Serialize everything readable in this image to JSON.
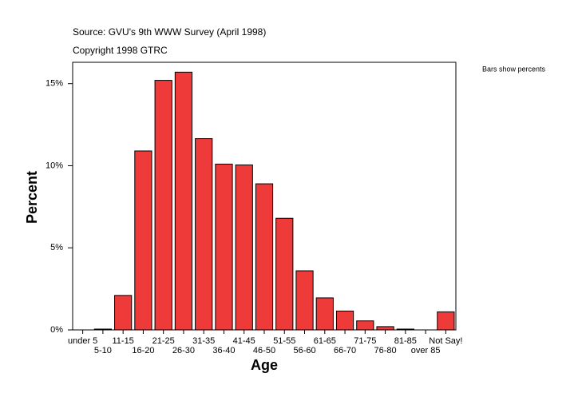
{
  "chart_data": {
    "type": "bar",
    "title": "Source: GVU's 9th WWW Survey (April 1998)",
    "subtitle": "Copyright 1998 GTRC",
    "annotation": "Bars show percents",
    "x_label": "Age",
    "y_label": "Percent",
    "categories": [
      "under 5",
      "5-10",
      "11-15",
      "16-20",
      "21-25",
      "26-30",
      "31-35",
      "36-40",
      "41-45",
      "46-50",
      "51-55",
      "56-60",
      "61-65",
      "66-70",
      "71-75",
      "76-80",
      "81-85",
      "over 85",
      "Not Say!"
    ],
    "values": [
      0,
      0.05,
      2.1,
      10.9,
      15.2,
      15.7,
      11.65,
      10.1,
      10.05,
      8.9,
      6.8,
      3.6,
      1.95,
      1.15,
      0.55,
      0.2,
      0.05,
      0,
      1.1
    ],
    "color": "#ef3a3a",
    "ylim": [
      0,
      16.3
    ],
    "yticks": [
      {
        "value": 0,
        "label": "0%"
      },
      {
        "value": 5,
        "label": "5%"
      },
      {
        "value": 10,
        "label": "10%"
      },
      {
        "value": 15,
        "label": "15%"
      }
    ],
    "grid": false
  }
}
